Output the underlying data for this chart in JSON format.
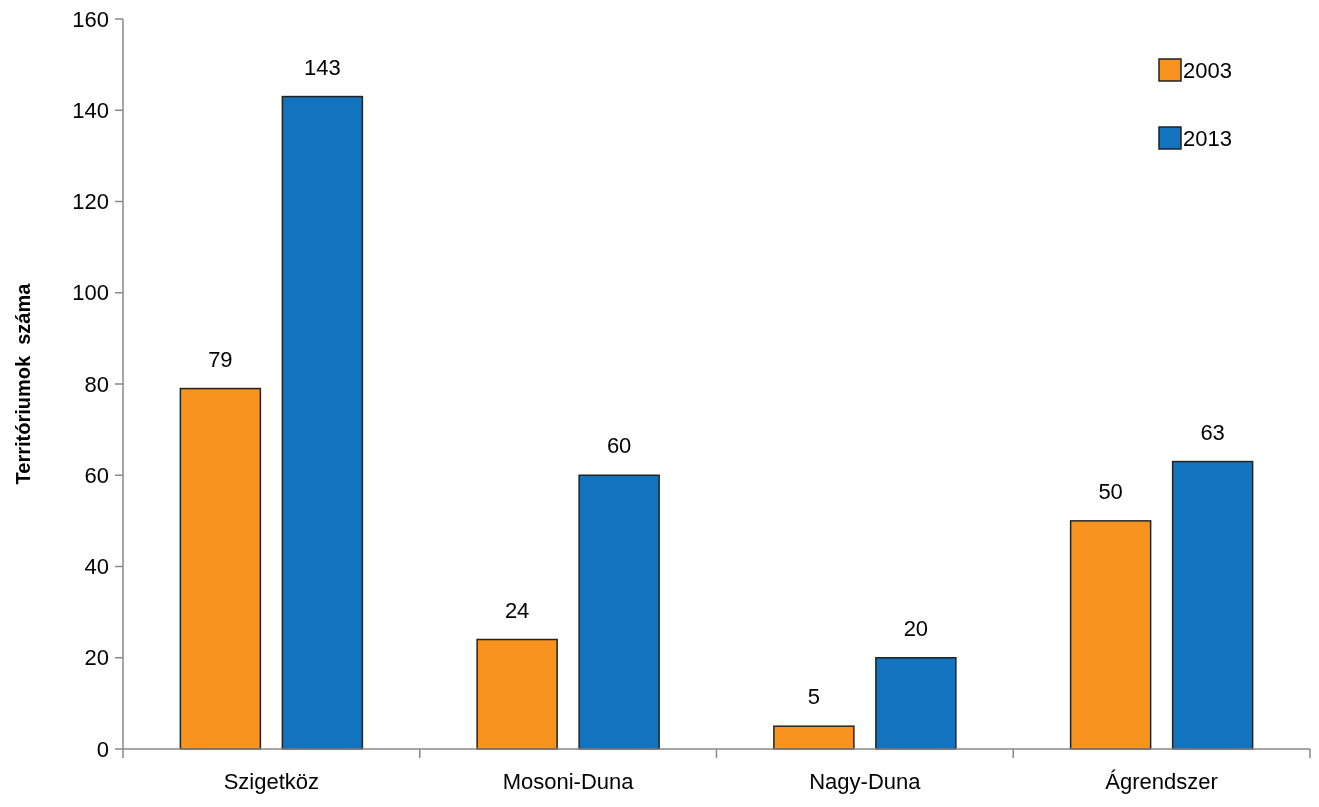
{
  "chart_data": {
    "type": "bar",
    "ylabel": "Territóriumok  száma",
    "categories": [
      "Szigetköz",
      "Mosoni-Duna",
      "Nagy-Duna",
      "Ágrendszer"
    ],
    "series": [
      {
        "name": "2003",
        "color": "#f7931e",
        "values": [
          79,
          24,
          5,
          50
        ]
      },
      {
        "name": "2013",
        "color": "#1273be",
        "values": [
          143,
          60,
          20,
          63
        ]
      }
    ],
    "ylim": [
      0,
      160
    ],
    "yticks": [
      0,
      20,
      40,
      60,
      80,
      100,
      120,
      140,
      160
    ],
    "data_labels": true,
    "legend": "top right",
    "grid": false
  }
}
